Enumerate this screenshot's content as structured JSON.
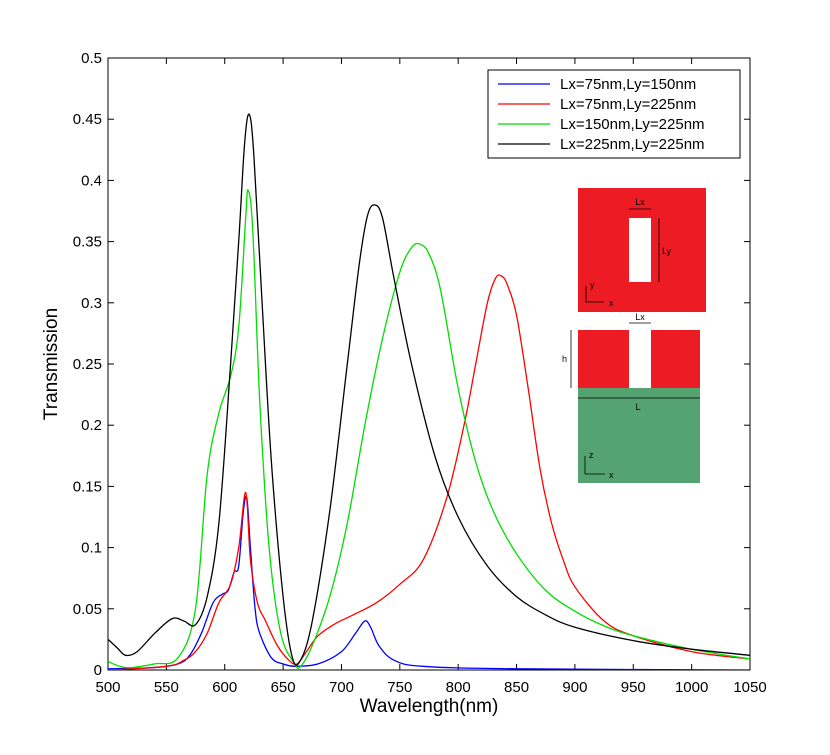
{
  "chart_data": {
    "type": "line",
    "title": "",
    "xlabel": "Wavelength(nm)",
    "ylabel": "Transmission",
    "xlim": [
      500,
      1050
    ],
    "ylim": [
      0,
      0.5
    ],
    "xticks": [
      500,
      550,
      600,
      650,
      700,
      750,
      800,
      850,
      900,
      950,
      1000,
      1050
    ],
    "yticks": [
      0,
      0.05,
      0.1,
      0.15,
      0.2,
      0.25,
      0.3,
      0.35,
      0.4,
      0.45,
      0.5
    ],
    "xtick_labels": [
      "500",
      "550",
      "600",
      "650",
      "700",
      "750",
      "800",
      "850",
      "900",
      "950",
      "1000",
      "1050"
    ],
    "ytick_labels": [
      "0",
      "0.05",
      "0.1",
      "0.15",
      "0.2",
      "0.25",
      "0.3",
      "0.35",
      "0.4",
      "0.45",
      "0.5"
    ],
    "grid": false,
    "legend_position": "top-right",
    "series": [
      {
        "name": "Lx=75nm,Ly=150nm",
        "color": "#0000ff",
        "points": [
          [
            500,
            0.001
          ],
          [
            540,
            0.002
          ],
          [
            560,
            0.005
          ],
          [
            570,
            0.012
          ],
          [
            580,
            0.03
          ],
          [
            590,
            0.055
          ],
          [
            598,
            0.062
          ],
          [
            603,
            0.065
          ],
          [
            608,
            0.08
          ],
          [
            612,
            0.085
          ],
          [
            616,
            0.13
          ],
          [
            619,
            0.14
          ],
          [
            622,
            0.1
          ],
          [
            626,
            0.05
          ],
          [
            630,
            0.03
          ],
          [
            640,
            0.01
          ],
          [
            650,
            0.005
          ],
          [
            660,
            0.003
          ],
          [
            680,
            0.005
          ],
          [
            700,
            0.015
          ],
          [
            712,
            0.03
          ],
          [
            720,
            0.04
          ],
          [
            725,
            0.035
          ],
          [
            732,
            0.02
          ],
          [
            745,
            0.008
          ],
          [
            770,
            0.003
          ],
          [
            850,
            0.001
          ],
          [
            1050,
            0.0
          ]
        ]
      },
      {
        "name": "Lx=75nm,Ly=225nm",
        "color": "#ff0000",
        "points": [
          [
            500,
            0.0
          ],
          [
            550,
            0.003
          ],
          [
            565,
            0.008
          ],
          [
            575,
            0.015
          ],
          [
            585,
            0.03
          ],
          [
            595,
            0.055
          ],
          [
            605,
            0.07
          ],
          [
            612,
            0.1
          ],
          [
            618,
            0.145
          ],
          [
            622,
            0.09
          ],
          [
            628,
            0.055
          ],
          [
            635,
            0.04
          ],
          [
            645,
            0.02
          ],
          [
            655,
            0.008
          ],
          [
            662,
            0.005
          ],
          [
            670,
            0.015
          ],
          [
            680,
            0.028
          ],
          [
            695,
            0.038
          ],
          [
            710,
            0.045
          ],
          [
            730,
            0.055
          ],
          [
            750,
            0.07
          ],
          [
            770,
            0.09
          ],
          [
            790,
            0.14
          ],
          [
            805,
            0.2
          ],
          [
            815,
            0.25
          ],
          [
            825,
            0.3
          ],
          [
            832,
            0.32
          ],
          [
            837,
            0.322
          ],
          [
            842,
            0.315
          ],
          [
            850,
            0.29
          ],
          [
            860,
            0.23
          ],
          [
            870,
            0.165
          ],
          [
            880,
            0.12
          ],
          [
            890,
            0.09
          ],
          [
            900,
            0.068
          ],
          [
            925,
            0.04
          ],
          [
            950,
            0.028
          ],
          [
            1000,
            0.015
          ],
          [
            1050,
            0.009
          ]
        ]
      },
      {
        "name": "Lx=150nm,Ly=225nm",
        "color": "#00dd00",
        "points": [
          [
            500,
            0.007
          ],
          [
            510,
            0.003
          ],
          [
            520,
            0.002
          ],
          [
            540,
            0.005
          ],
          [
            560,
            0.01
          ],
          [
            575,
            0.05
          ],
          [
            585,
            0.16
          ],
          [
            595,
            0.21
          ],
          [
            605,
            0.24
          ],
          [
            612,
            0.28
          ],
          [
            618,
            0.37
          ],
          [
            620,
            0.392
          ],
          [
            624,
            0.36
          ],
          [
            630,
            0.22
          ],
          [
            638,
            0.1
          ],
          [
            648,
            0.03
          ],
          [
            660,
            0.005
          ],
          [
            665,
            0.003
          ],
          [
            675,
            0.02
          ],
          [
            690,
            0.06
          ],
          [
            705,
            0.12
          ],
          [
            720,
            0.2
          ],
          [
            735,
            0.27
          ],
          [
            750,
            0.325
          ],
          [
            760,
            0.345
          ],
          [
            767,
            0.348
          ],
          [
            775,
            0.34
          ],
          [
            785,
            0.31
          ],
          [
            800,
            0.23
          ],
          [
            815,
            0.17
          ],
          [
            830,
            0.13
          ],
          [
            850,
            0.095
          ],
          [
            875,
            0.065
          ],
          [
            900,
            0.048
          ],
          [
            925,
            0.036
          ],
          [
            950,
            0.028
          ],
          [
            1000,
            0.017
          ],
          [
            1050,
            0.009
          ]
        ]
      },
      {
        "name": "Lx=225nm,Ly=225nm",
        "color": "#000000",
        "points": [
          [
            500,
            0.025
          ],
          [
            508,
            0.018
          ],
          [
            515,
            0.012
          ],
          [
            525,
            0.015
          ],
          [
            540,
            0.03
          ],
          [
            555,
            0.042
          ],
          [
            565,
            0.04
          ],
          [
            575,
            0.037
          ],
          [
            585,
            0.06
          ],
          [
            595,
            0.12
          ],
          [
            605,
            0.25
          ],
          [
            612,
            0.35
          ],
          [
            617,
            0.43
          ],
          [
            621,
            0.454
          ],
          [
            625,
            0.42
          ],
          [
            632,
            0.3
          ],
          [
            640,
            0.17
          ],
          [
            650,
            0.06
          ],
          [
            658,
            0.01
          ],
          [
            665,
            0.008
          ],
          [
            675,
            0.04
          ],
          [
            690,
            0.13
          ],
          [
            705,
            0.25
          ],
          [
            715,
            0.33
          ],
          [
            722,
            0.37
          ],
          [
            728,
            0.38
          ],
          [
            735,
            0.37
          ],
          [
            745,
            0.32
          ],
          [
            760,
            0.25
          ],
          [
            780,
            0.175
          ],
          [
            800,
            0.125
          ],
          [
            825,
            0.085
          ],
          [
            850,
            0.06
          ],
          [
            875,
            0.045
          ],
          [
            900,
            0.035
          ],
          [
            950,
            0.024
          ],
          [
            1000,
            0.017
          ],
          [
            1050,
            0.012
          ]
        ]
      }
    ],
    "inset": {
      "top_view": {
        "fill": "#ed1c24",
        "labels": [
          "Lx",
          "Ly",
          "y",
          "x"
        ]
      },
      "side_view": {
        "metal_fill": "#ed1c24",
        "substrate_fill": "#55a370",
        "labels": [
          "Lx",
          "h",
          "L",
          "z",
          "x"
        ]
      }
    }
  }
}
